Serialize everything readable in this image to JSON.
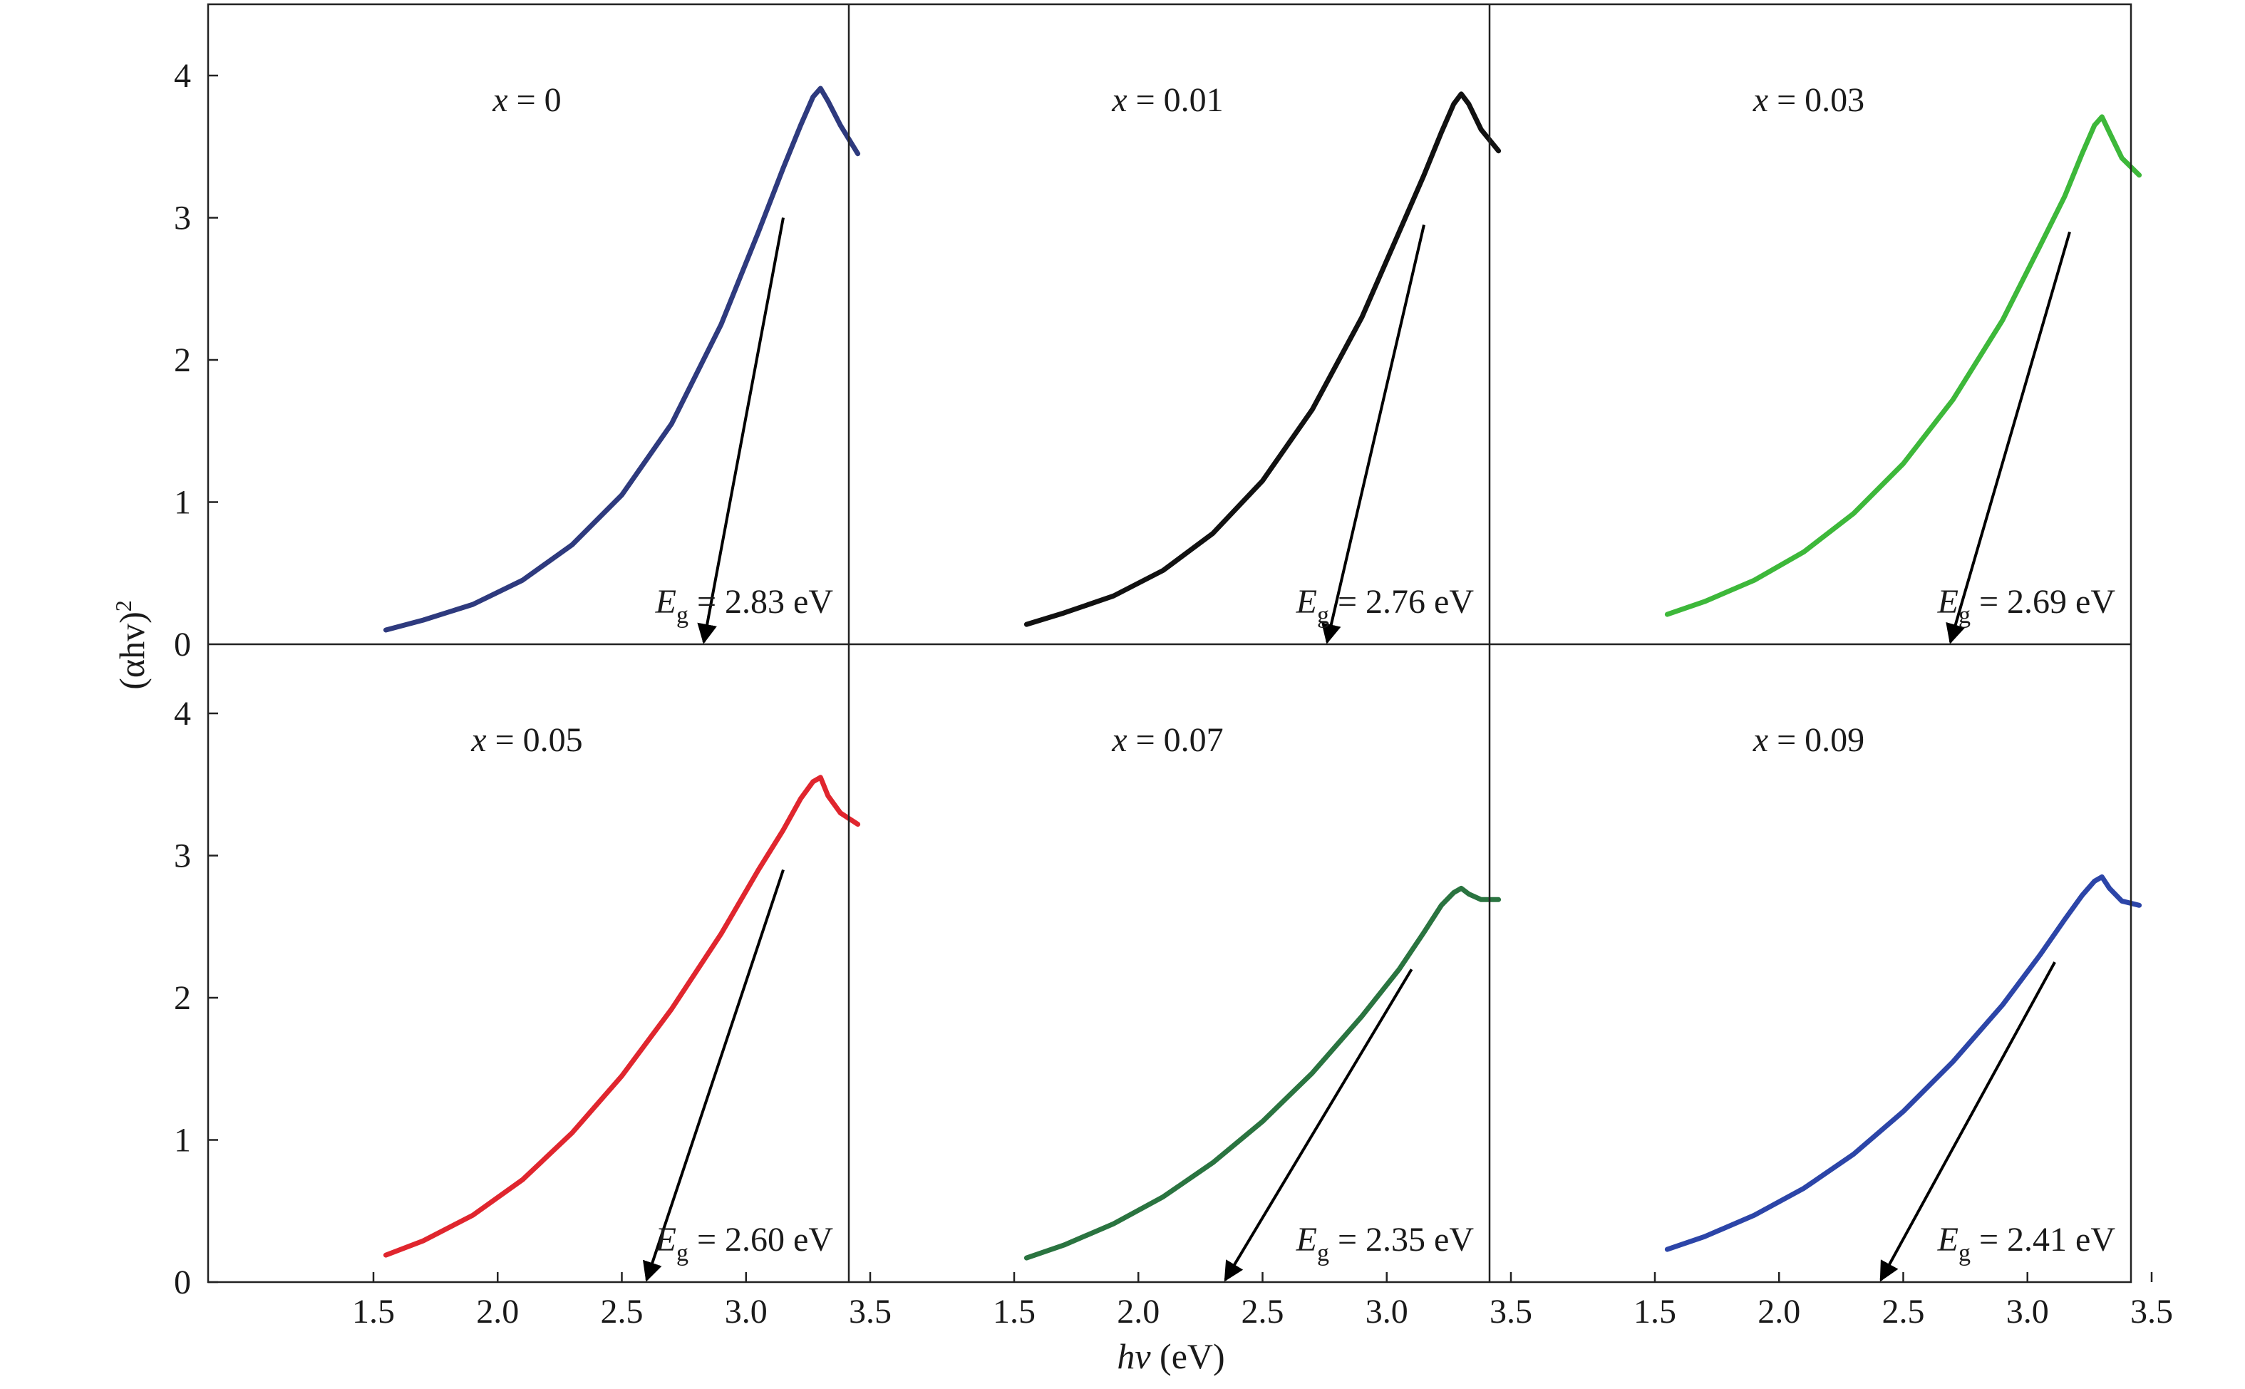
{
  "chart_data": {
    "type": "line",
    "layout": "2x3 grid of panels with shared axes",
    "xlabel_parts": [
      "hv",
      " (eV)"
    ],
    "ylabel_parts": [
      "(αhv)",
      "2"
    ],
    "x_ticks": [
      "1.5",
      "2.0",
      "2.5",
      "3.0",
      "3.5"
    ],
    "y_ticks": [
      "0",
      "1",
      "2",
      "3",
      "4"
    ],
    "xlim": [
      1.3,
      3.75
    ],
    "ylim": [
      0,
      4.5
    ],
    "grid": false,
    "panels": [
      {
        "label_var": "x",
        "label_value": " = 0",
        "eg_sub": "g",
        "eg_value": " = 2.83 eV",
        "color": "#2e3a7e",
        "x": [
          1.55,
          1.7,
          1.9,
          2.1,
          2.3,
          2.5,
          2.7,
          2.9,
          3.05,
          3.15,
          3.22,
          3.27,
          3.3,
          3.33,
          3.38,
          3.45
        ],
        "y": [
          0.1,
          0.17,
          0.28,
          0.45,
          0.7,
          1.05,
          1.55,
          2.25,
          2.9,
          3.35,
          3.65,
          3.85,
          3.91,
          3.82,
          3.65,
          3.45
        ],
        "tangent": {
          "x_from": 3.15,
          "y_from": 3.0,
          "x_to": 2.83,
          "y_to": 0
        }
      },
      {
        "label_var": "x",
        "label_value": " = 0.01",
        "eg_sub": "g",
        "eg_value": " = 2.76 eV",
        "color": "#111111",
        "x": [
          1.55,
          1.7,
          1.9,
          2.1,
          2.3,
          2.5,
          2.7,
          2.9,
          3.05,
          3.15,
          3.22,
          3.27,
          3.3,
          3.33,
          3.38,
          3.45
        ],
        "y": [
          0.14,
          0.22,
          0.34,
          0.52,
          0.78,
          1.15,
          1.65,
          2.3,
          2.9,
          3.3,
          3.6,
          3.8,
          3.87,
          3.8,
          3.62,
          3.47
        ],
        "tangent": {
          "x_from": 3.15,
          "y_from": 2.95,
          "x_to": 2.76,
          "y_to": 0
        }
      },
      {
        "label_var": "x",
        "label_value": " = 0.03",
        "eg_sub": "g",
        "eg_value": " = 2.69 eV",
        "color": "#3db83a",
        "x": [
          1.55,
          1.7,
          1.9,
          2.1,
          2.3,
          2.5,
          2.7,
          2.9,
          3.05,
          3.15,
          3.22,
          3.27,
          3.3,
          3.33,
          3.38,
          3.45
        ],
        "y": [
          0.21,
          0.3,
          0.45,
          0.65,
          0.92,
          1.27,
          1.72,
          2.28,
          2.8,
          3.15,
          3.45,
          3.65,
          3.71,
          3.6,
          3.42,
          3.3
        ],
        "tangent": {
          "x_from": 3.17,
          "y_from": 2.9,
          "x_to": 2.69,
          "y_to": 0
        }
      },
      {
        "label_var": "x",
        "label_value": " = 0.05",
        "eg_sub": "g",
        "eg_value": " = 2.60 eV",
        "color": "#e0262e",
        "x": [
          1.55,
          1.7,
          1.9,
          2.1,
          2.3,
          2.5,
          2.7,
          2.9,
          3.05,
          3.15,
          3.22,
          3.27,
          3.3,
          3.33,
          3.38,
          3.45
        ],
        "y": [
          0.19,
          0.29,
          0.47,
          0.72,
          1.05,
          1.45,
          1.92,
          2.45,
          2.9,
          3.18,
          3.4,
          3.52,
          3.55,
          3.42,
          3.3,
          3.22
        ],
        "tangent": {
          "x_from": 3.15,
          "y_from": 2.9,
          "x_to": 2.6,
          "y_to": 0
        }
      },
      {
        "label_var": "x",
        "label_value": " = 0.07",
        "eg_sub": "g",
        "eg_value": " = 2.35 eV",
        "color": "#2a7440",
        "x": [
          1.55,
          1.7,
          1.9,
          2.1,
          2.3,
          2.5,
          2.7,
          2.9,
          3.05,
          3.15,
          3.22,
          3.27,
          3.3,
          3.33,
          3.38,
          3.45
        ],
        "y": [
          0.17,
          0.26,
          0.41,
          0.6,
          0.84,
          1.13,
          1.47,
          1.87,
          2.2,
          2.46,
          2.65,
          2.74,
          2.77,
          2.73,
          2.69,
          2.69
        ],
        "tangent": {
          "x_from": 3.1,
          "y_from": 2.2,
          "x_to": 2.35,
          "y_to": 0
        }
      },
      {
        "label_var": "x",
        "label_value": " = 0.09",
        "eg_sub": "g",
        "eg_value": " = 2.41 eV",
        "color": "#2c45a8",
        "x": [
          1.55,
          1.7,
          1.9,
          2.1,
          2.3,
          2.5,
          2.7,
          2.9,
          3.05,
          3.15,
          3.22,
          3.27,
          3.3,
          3.33,
          3.38,
          3.45
        ],
        "y": [
          0.23,
          0.32,
          0.47,
          0.66,
          0.9,
          1.2,
          1.55,
          1.95,
          2.3,
          2.55,
          2.72,
          2.82,
          2.85,
          2.77,
          2.68,
          2.65
        ],
        "tangent": {
          "x_from": 3.11,
          "y_from": 2.25,
          "x_to": 2.41,
          "y_to": 0
        }
      }
    ]
  }
}
